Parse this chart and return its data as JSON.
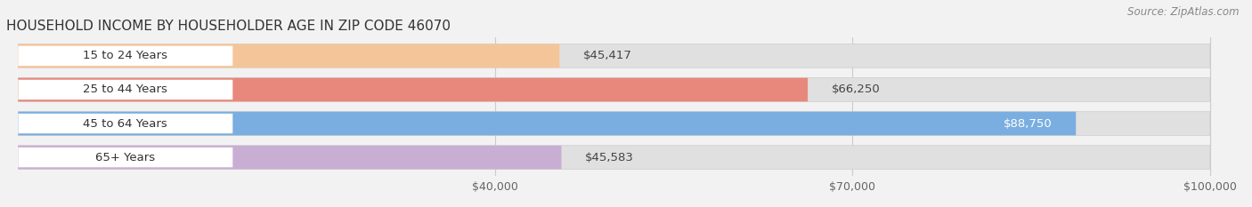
{
  "title": "HOUSEHOLD INCOME BY HOUSEHOLDER AGE IN ZIP CODE 46070",
  "source": "Source: ZipAtlas.com",
  "categories": [
    "15 to 24 Years",
    "25 to 44 Years",
    "45 to 64 Years",
    "65+ Years"
  ],
  "values": [
    45417,
    66250,
    88750,
    45583
  ],
  "bar_colors": [
    "#f5c59a",
    "#e8887c",
    "#7aaee0",
    "#c9aed4"
  ],
  "label_colors": [
    "#444444",
    "#444444",
    "#ffffff",
    "#444444"
  ],
  "xmin": 0,
  "xmax": 100000,
  "xticks": [
    40000,
    70000,
    100000
  ],
  "xtick_labels": [
    "$40,000",
    "$70,000",
    "$100,000"
  ],
  "background_color": "#f2f2f2",
  "bar_background_color": "#e0e0e0",
  "title_fontsize": 11,
  "source_fontsize": 8.5,
  "label_fontsize": 9.5,
  "category_fontsize": 9.5,
  "tick_fontsize": 9,
  "bar_height": 0.7,
  "label_pill_color": "#ffffff",
  "grid_color": "#cccccc"
}
